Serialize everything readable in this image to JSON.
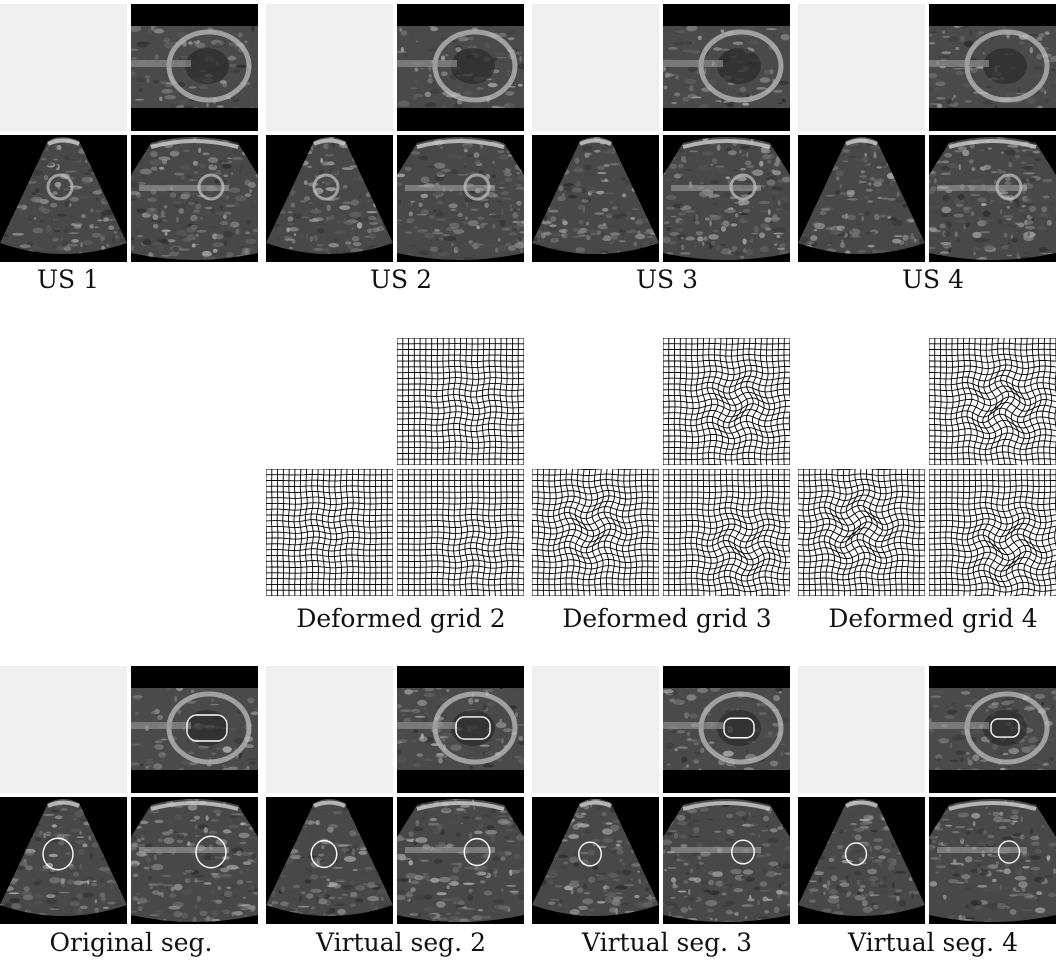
{
  "figure": {
    "rows": [
      {
        "type": "ultrasound",
        "captions": [
          "US 1",
          "US 2",
          "US 3",
          "US 4"
        ]
      },
      {
        "type": "deformed-grid",
        "captions": [
          "Deformed grid 2",
          "Deformed grid 3",
          "Deformed grid 4"
        ]
      },
      {
        "type": "segmentation",
        "captions": [
          "Original seg.",
          "Virtual seg. 2",
          "Virtual seg. 3",
          "Virtual seg. 4"
        ]
      }
    ]
  }
}
